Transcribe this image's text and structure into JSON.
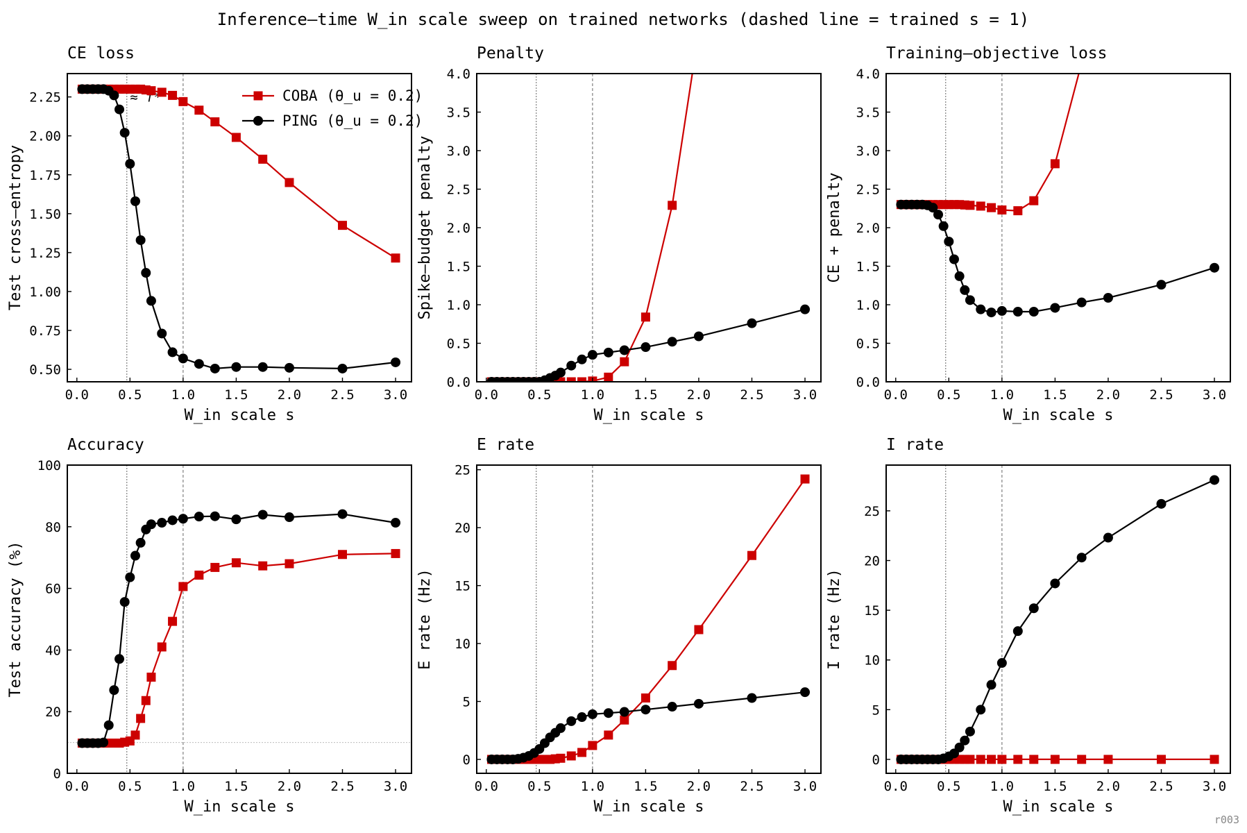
{
  "suptitle": "Inference–time W_in scale sweep on trained networks (dashed line = trained s = 1)",
  "watermark": "r003",
  "colors": {
    "coba": "#cc0000",
    "ping": "#000000",
    "reference": "#888888"
  },
  "legend": {
    "coba": "COBA (θ_u = 0.2)",
    "ping": "PING (θ_u = 0.2)"
  },
  "annotation": "≈ f*",
  "chart_data": [
    {
      "type": "line",
      "title": "CE loss",
      "xlabel": "W_in scale s",
      "ylabel": "Test cross–entropy",
      "xlim": [
        -0.09,
        3.15
      ],
      "ylim": [
        0.42,
        2.4
      ],
      "xticks": [
        "0.0",
        "0.5",
        "1.0",
        "1.5",
        "2.0",
        "2.5",
        "3.0"
      ],
      "yticks": [
        "0.50",
        "0.75",
        "1.00",
        "1.25",
        "1.50",
        "1.75",
        "2.00",
        "2.25"
      ],
      "vlines": [
        0.47,
        1.0
      ],
      "legend": "top-right",
      "annotate": true,
      "series": [
        {
          "key": "coba",
          "marker": "square",
          "x": [
            0.05,
            0.1,
            0.15,
            0.2,
            0.25,
            0.3,
            0.35,
            0.4,
            0.45,
            0.5,
            0.55,
            0.6,
            0.65,
            0.7,
            0.8,
            0.9,
            1.0,
            1.15,
            1.3,
            1.5,
            1.75,
            2.0,
            2.5,
            3.0
          ],
          "y": [
            2.3,
            2.3,
            2.3,
            2.3,
            2.3,
            2.3,
            2.3,
            2.3,
            2.3,
            2.3,
            2.3,
            2.3,
            2.295,
            2.29,
            2.28,
            2.26,
            2.22,
            2.165,
            2.09,
            1.99,
            1.85,
            1.7,
            1.425,
            1.215
          ]
        },
        {
          "key": "ping",
          "marker": "circle",
          "x": [
            0.05,
            0.1,
            0.15,
            0.2,
            0.25,
            0.3,
            0.35,
            0.4,
            0.45,
            0.5,
            0.55,
            0.6,
            0.65,
            0.7,
            0.8,
            0.9,
            1.0,
            1.15,
            1.3,
            1.5,
            1.75,
            2.0,
            2.5,
            3.0
          ],
          "y": [
            2.3,
            2.3,
            2.3,
            2.3,
            2.3,
            2.29,
            2.26,
            2.17,
            2.02,
            1.82,
            1.58,
            1.33,
            1.12,
            0.94,
            0.73,
            0.61,
            0.57,
            0.535,
            0.505,
            0.515,
            0.515,
            0.51,
            0.505,
            0.545
          ]
        }
      ]
    },
    {
      "type": "line",
      "title": "Penalty",
      "xlabel": "W_in scale s",
      "ylabel": "Spike–budget penalty",
      "xlim": [
        -0.09,
        3.15
      ],
      "ylim": [
        0,
        4.0
      ],
      "xticks": [
        "0.0",
        "0.5",
        "1.0",
        "1.5",
        "2.0",
        "2.5",
        "3.0"
      ],
      "yticks": [
        "0.0",
        "0.5",
        "1.0",
        "1.5",
        "2.0",
        "2.5",
        "3.0",
        "3.5",
        "4.0"
      ],
      "vlines": [
        0.47,
        1.0
      ],
      "series": [
        {
          "key": "coba",
          "marker": "square",
          "x": [
            0.05,
            0.1,
            0.15,
            0.2,
            0.25,
            0.3,
            0.35,
            0.4,
            0.45,
            0.5,
            0.55,
            0.6,
            0.65,
            0.7,
            0.8,
            0.9,
            1.0,
            1.15,
            1.3,
            1.5,
            1.75,
            2.0
          ],
          "y": [
            0,
            0,
            0,
            0,
            0,
            0,
            0,
            0,
            0,
            0,
            0,
            0,
            0,
            0,
            0,
            0,
            0.01,
            0.06,
            0.26,
            0.84,
            2.29,
            4.55
          ]
        },
        {
          "key": "ping",
          "marker": "circle",
          "x": [
            0.05,
            0.1,
            0.15,
            0.2,
            0.25,
            0.3,
            0.35,
            0.4,
            0.45,
            0.5,
            0.55,
            0.6,
            0.65,
            0.7,
            0.8,
            0.9,
            1.0,
            1.15,
            1.3,
            1.5,
            1.75,
            2.0,
            2.5,
            3.0
          ],
          "y": [
            0,
            0,
            0,
            0,
            0,
            0,
            0,
            0,
            0,
            0,
            0.02,
            0.05,
            0.08,
            0.12,
            0.21,
            0.29,
            0.35,
            0.38,
            0.41,
            0.45,
            0.52,
            0.59,
            0.76,
            0.94
          ]
        }
      ]
    },
    {
      "type": "line",
      "title": "Training–objective loss",
      "xlabel": "W_in scale s",
      "ylabel": "CE + penalty",
      "xlim": [
        -0.09,
        3.15
      ],
      "ylim": [
        0,
        4.0
      ],
      "xticks": [
        "0.0",
        "0.5",
        "1.0",
        "1.5",
        "2.0",
        "2.5",
        "3.0"
      ],
      "yticks": [
        "0.0",
        "0.5",
        "1.0",
        "1.5",
        "2.0",
        "2.5",
        "3.0",
        "3.5",
        "4.0"
      ],
      "vlines": [
        0.47,
        1.0
      ],
      "series": [
        {
          "key": "coba",
          "marker": "square",
          "x": [
            0.05,
            0.1,
            0.15,
            0.2,
            0.25,
            0.3,
            0.35,
            0.4,
            0.45,
            0.5,
            0.55,
            0.6,
            0.65,
            0.7,
            0.8,
            0.9,
            1.0,
            1.15,
            1.3,
            1.5,
            1.75
          ],
          "y": [
            2.3,
            2.3,
            2.3,
            2.3,
            2.3,
            2.3,
            2.3,
            2.3,
            2.3,
            2.3,
            2.3,
            2.3,
            2.295,
            2.29,
            2.28,
            2.26,
            2.23,
            2.22,
            2.35,
            2.83,
            4.14
          ]
        },
        {
          "key": "ping",
          "marker": "circle",
          "x": [
            0.05,
            0.1,
            0.15,
            0.2,
            0.25,
            0.3,
            0.35,
            0.4,
            0.45,
            0.5,
            0.55,
            0.6,
            0.65,
            0.7,
            0.8,
            0.9,
            1.0,
            1.15,
            1.3,
            1.5,
            1.75,
            2.0,
            2.5,
            3.0
          ],
          "y": [
            2.3,
            2.3,
            2.3,
            2.3,
            2.3,
            2.29,
            2.26,
            2.17,
            2.02,
            1.82,
            1.59,
            1.37,
            1.19,
            1.06,
            0.94,
            0.9,
            0.92,
            0.91,
            0.91,
            0.96,
            1.03,
            1.09,
            1.26,
            1.48
          ]
        }
      ]
    },
    {
      "type": "line",
      "title": "Accuracy",
      "xlabel": "W_in scale s",
      "ylabel": "Test accuracy (%)",
      "xlim": [
        -0.09,
        3.15
      ],
      "ylim": [
        0,
        100
      ],
      "xticks": [
        "0.0",
        "0.5",
        "1.0",
        "1.5",
        "2.0",
        "2.5",
        "3.0"
      ],
      "yticks": [
        "0",
        "20",
        "40",
        "60",
        "80",
        "100"
      ],
      "vlines": [
        0.47,
        1.0
      ],
      "hline": 10,
      "series": [
        {
          "key": "coba",
          "marker": "square",
          "x": [
            0.05,
            0.1,
            0.15,
            0.2,
            0.25,
            0.3,
            0.35,
            0.4,
            0.45,
            0.5,
            0.55,
            0.6,
            0.65,
            0.7,
            0.8,
            0.9,
            1.0,
            1.15,
            1.3,
            1.5,
            1.75,
            2.0,
            2.5,
            3.0
          ],
          "y": [
            9.8,
            9.8,
            9.8,
            9.8,
            9.8,
            9.8,
            9.8,
            9.8,
            10.1,
            10.5,
            12.4,
            17.8,
            23.6,
            31.2,
            41.0,
            49.3,
            60.6,
            64.3,
            66.8,
            68.3,
            67.3,
            68.0,
            71.0,
            71.3
          ]
        },
        {
          "key": "ping",
          "marker": "circle",
          "x": [
            0.05,
            0.1,
            0.15,
            0.2,
            0.25,
            0.3,
            0.35,
            0.4,
            0.45,
            0.5,
            0.55,
            0.6,
            0.65,
            0.7,
            0.8,
            0.9,
            1.0,
            1.15,
            1.3,
            1.5,
            1.75,
            2.0,
            2.5,
            3.0
          ],
          "y": [
            9.8,
            9.8,
            9.8,
            9.8,
            10.0,
            15.6,
            27.0,
            37.1,
            55.6,
            63.6,
            70.6,
            74.8,
            79.1,
            80.8,
            81.3,
            82.1,
            82.6,
            83.3,
            83.4,
            82.4,
            83.9,
            83.1,
            84.1,
            81.3
          ]
        }
      ]
    },
    {
      "type": "line",
      "title": "E rate",
      "xlabel": "W_in scale s",
      "ylabel": "E rate (Hz)",
      "xlim": [
        -0.09,
        3.15
      ],
      "ylim": [
        -1.2,
        25.4
      ],
      "xticks": [
        "0.0",
        "0.5",
        "1.0",
        "1.5",
        "2.0",
        "2.5",
        "3.0"
      ],
      "yticks": [
        "0",
        "5",
        "10",
        "15",
        "20",
        "25"
      ],
      "vlines": [
        0.47,
        1.0
      ],
      "series": [
        {
          "key": "coba",
          "marker": "square",
          "x": [
            0.05,
            0.1,
            0.15,
            0.2,
            0.25,
            0.3,
            0.35,
            0.4,
            0.45,
            0.5,
            0.55,
            0.6,
            0.65,
            0.7,
            0.8,
            0.9,
            1.0,
            1.15,
            1.3,
            1.5,
            1.75,
            2.0,
            2.5,
            3.0
          ],
          "y": [
            0,
            0,
            0,
            0,
            0,
            0,
            0,
            0,
            0,
            0,
            0,
            0,
            0.05,
            0.1,
            0.3,
            0.6,
            1.2,
            2.1,
            3.4,
            5.3,
            8.1,
            11.2,
            17.6,
            24.2
          ]
        },
        {
          "key": "ping",
          "marker": "circle",
          "x": [
            0.05,
            0.1,
            0.15,
            0.2,
            0.25,
            0.3,
            0.35,
            0.4,
            0.45,
            0.5,
            0.55,
            0.6,
            0.65,
            0.7,
            0.8,
            0.9,
            1.0,
            1.15,
            1.3,
            1.5,
            1.75,
            2.0,
            2.5,
            3.0
          ],
          "y": [
            0,
            0,
            0,
            0,
            0,
            0.05,
            0.15,
            0.3,
            0.55,
            0.9,
            1.4,
            1.9,
            2.3,
            2.7,
            3.3,
            3.65,
            3.9,
            4.0,
            4.1,
            4.3,
            4.55,
            4.8,
            5.3,
            5.8
          ]
        }
      ]
    },
    {
      "type": "line",
      "title": "I rate",
      "xlabel": "W_in scale s",
      "ylabel": "I rate (Hz)",
      "xlim": [
        -0.09,
        3.15
      ],
      "ylim": [
        -1.4,
        29.6
      ],
      "xticks": [
        "0.0",
        "0.5",
        "1.0",
        "1.5",
        "2.0",
        "2.5",
        "3.0"
      ],
      "yticks": [
        "0",
        "5",
        "10",
        "15",
        "20",
        "25"
      ],
      "vlines": [
        0.47,
        1.0
      ],
      "series": [
        {
          "key": "coba",
          "marker": "square",
          "x": [
            0.05,
            0.1,
            0.15,
            0.2,
            0.25,
            0.3,
            0.35,
            0.4,
            0.45,
            0.5,
            0.55,
            0.6,
            0.65,
            0.7,
            0.8,
            0.9,
            1.0,
            1.15,
            1.3,
            1.5,
            1.75,
            2.0,
            2.5,
            3.0
          ],
          "y": [
            0,
            0,
            0,
            0,
            0,
            0,
            0,
            0,
            0,
            0,
            0,
            0,
            0,
            0,
            0,
            0,
            0,
            0,
            0,
            0,
            0,
            0,
            0,
            0
          ]
        },
        {
          "key": "ping",
          "marker": "circle",
          "x": [
            0.05,
            0.1,
            0.15,
            0.2,
            0.25,
            0.3,
            0.35,
            0.4,
            0.45,
            0.5,
            0.55,
            0.6,
            0.65,
            0.7,
            0.8,
            0.9,
            1.0,
            1.15,
            1.3,
            1.5,
            1.75,
            2.0,
            2.5,
            3.0
          ],
          "y": [
            0,
            0,
            0,
            0,
            0,
            0,
            0,
            0,
            0.1,
            0.3,
            0.6,
            1.2,
            1.9,
            2.8,
            5.0,
            7.5,
            9.7,
            12.9,
            15.2,
            17.7,
            20.3,
            22.3,
            25.7,
            28.1
          ]
        }
      ]
    }
  ]
}
